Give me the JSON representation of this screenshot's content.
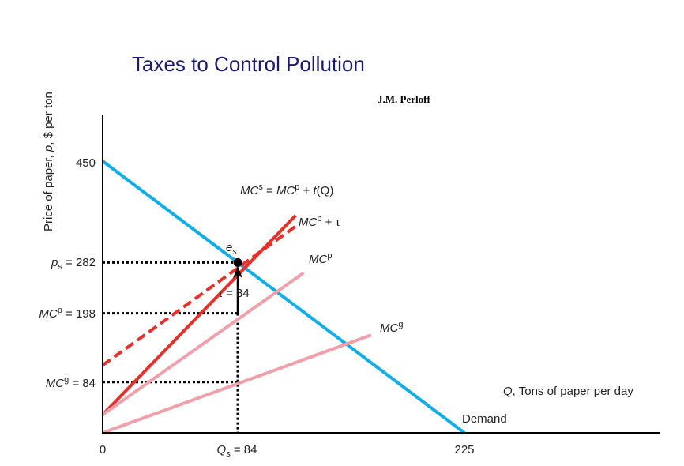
{
  "title": "Taxes to Control Pollution",
  "author": "J.M. Perloff",
  "chart_data": {
    "type": "line",
    "xlabel_var": "Q",
    "xlabel_rest": ", Tons of paper per day",
    "ylabel_pre": "Price of paper, ",
    "ylabel_var": "p",
    "ylabel_post": ", $ per ton",
    "xlim": [
      0,
      370
    ],
    "ylim": [
      0,
      450
    ],
    "x_ticks": [
      {
        "value": 0,
        "label": "0"
      },
      {
        "value": 225,
        "label": "225"
      }
    ],
    "qs_tick": {
      "value": 84,
      "var": "Q",
      "sub": "s",
      "rest": " = 84"
    },
    "y_ticks": [
      {
        "value": 450,
        "label": "450"
      }
    ],
    "ps_tick": {
      "value": 282,
      "var": "p",
      "sub": "s",
      "rest": " = 282"
    },
    "mcp_tick": {
      "value": 198,
      "var": "MC",
      "sup": "p",
      "rest": " = 198"
    },
    "mcg_tick": {
      "value": 84,
      "var": "MC",
      "sup": "g",
      "rest": " = 84"
    },
    "series": [
      {
        "key": "demand",
        "label": "Demand",
        "color": "#10aee8",
        "dashed": false,
        "points": [
          [
            0,
            450
          ],
          [
            225,
            0
          ]
        ]
      },
      {
        "key": "mcs",
        "color": "#e8302a",
        "dashed": false,
        "points": [
          [
            0,
            30
          ],
          [
            120,
            360
          ]
        ]
      },
      {
        "key": "mcpt",
        "color": "#e8302a",
        "dashed": true,
        "points": [
          [
            0,
            112
          ],
          [
            120,
            342
          ]
        ]
      },
      {
        "key": "mcp",
        "color": "#f0a0aa",
        "dashed": false,
        "points": [
          [
            0,
            30
          ],
          [
            125,
            265
          ]
        ]
      },
      {
        "key": "mcg",
        "color": "#f0a0aa",
        "dashed": false,
        "points": [
          [
            0,
            0
          ],
          [
            167,
            162
          ]
        ]
      }
    ],
    "mcs_label": {
      "a": "MC",
      "a_sup": "s",
      "mid": " = ",
      "b": "MC",
      "b_sup": "p",
      "plus": " + ",
      "t": "t",
      "q": "(Q)"
    },
    "mcpt_label": {
      "a": "MC",
      "a_sup": "p",
      "plus": " + ",
      "tau": "τ"
    },
    "mcp_label": {
      "a": "MC",
      "a_sup": "p"
    },
    "mcg_label": {
      "a": "MC",
      "a_sup": "g"
    },
    "equilibrium": {
      "x": 84,
      "y": 282,
      "var": "e",
      "sub": "s"
    },
    "tax_arrow": {
      "x": 84,
      "from": 198,
      "to": 282,
      "label_tau": "τ",
      "label_rest": " = 84"
    }
  }
}
